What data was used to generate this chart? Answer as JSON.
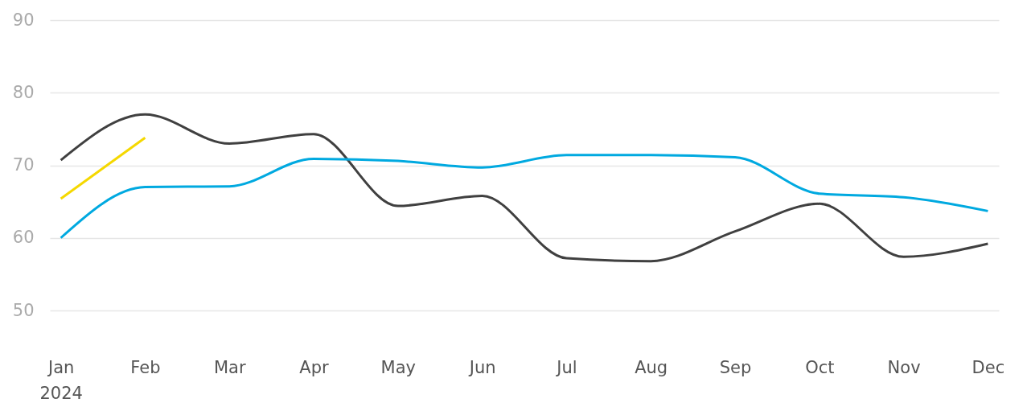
{
  "chart_data": {
    "type": "line",
    "categories": [
      "Jan 2024",
      "Feb",
      "Mar",
      "Apr",
      "May",
      "Jun",
      "Jul",
      "Aug",
      "Sep",
      "Oct",
      "Nov",
      "Dec"
    ],
    "series": [
      {
        "color": "#404040",
        "values": [
          70.7,
          77.0,
          73.0,
          74.3,
          64.4,
          65.8,
          57.2,
          56.8,
          60.9,
          64.7,
          57.4,
          59.2
        ]
      },
      {
        "color": "#00a9e0",
        "values": [
          60.0,
          67.0,
          67.1,
          70.9,
          70.6,
          69.7,
          71.4,
          71.4,
          71.1,
          66.1,
          65.6,
          63.7
        ]
      },
      {
        "color": "#f5d800",
        "values": [
          65.4,
          73.8,
          null,
          null,
          null,
          null,
          null,
          null,
          null,
          null,
          null,
          null
        ]
      }
    ],
    "ylim": [
      50,
      90
    ],
    "yticks": [
      50,
      60,
      70,
      80,
      90
    ],
    "grid": "y",
    "legend": false,
    "marker": "none",
    "line_style": "solid"
  }
}
